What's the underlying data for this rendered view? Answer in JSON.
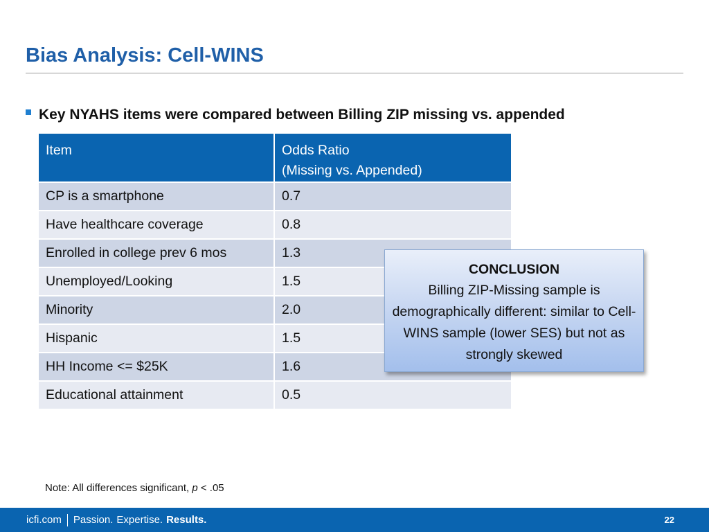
{
  "slide": {
    "title": "Bias Analysis: Cell-WINS",
    "bullet": "Key NYAHS items were compared between Billing ZIP missing vs. appended"
  },
  "table": {
    "headers": {
      "item": "Item",
      "odds_line1": "Odds Ratio",
      "odds_line2": "(Missing vs. Appended)"
    },
    "rows": [
      {
        "item": "CP is a smartphone",
        "odds": "0.7"
      },
      {
        "item": "Have healthcare coverage",
        "odds": "0.8"
      },
      {
        "item": "Enrolled in college prev 6 mos",
        "odds": "1.3"
      },
      {
        "item": "Unemployed/Looking",
        "odds": "1.5"
      },
      {
        "item": "Minority",
        "odds": "2.0"
      },
      {
        "item": "Hispanic",
        "odds": "1.5"
      },
      {
        "item": "HH Income <= $25K",
        "odds": "1.6"
      },
      {
        "item": "Educational attainment",
        "odds": "0.5"
      }
    ]
  },
  "conclusion": {
    "heading": "CONCLUSION",
    "body": "Billing ZIP-Missing sample is demographically different: similar to Cell-WINS sample (lower SES) but not as strongly skewed"
  },
  "note": {
    "prefix": "Note: All differences significant, ",
    "italic": "p",
    "suffix": " < .05"
  },
  "footer": {
    "site": "icfi.com",
    "word1": "Passion.",
    "word2": "Expertise.",
    "word3": "Results.",
    "page_number": "22"
  },
  "colors": {
    "title": "#1F5FA8",
    "header_bg": "#0A64B0",
    "row_odd": "#CDD5E5",
    "row_even": "#E7EAF2",
    "footer_bg": "#0A64B0"
  }
}
